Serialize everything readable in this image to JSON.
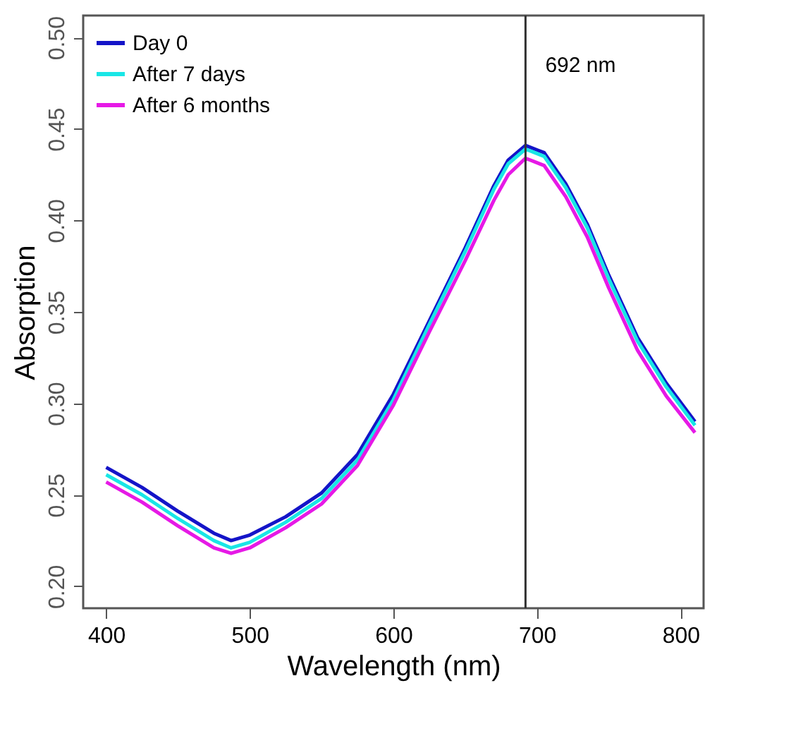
{
  "chart_data": {
    "type": "line",
    "xlabel": "Wavelength (nm)",
    "ylabel": "Absorption",
    "x": [
      400,
      425,
      450,
      475,
      487,
      500,
      525,
      550,
      575,
      600,
      625,
      650,
      670,
      680,
      692,
      705,
      720,
      735,
      750,
      770,
      790,
      810
    ],
    "series": [
      {
        "name": "Day 0",
        "color": "#1414c8",
        "values": [
          0.265,
          0.254,
          0.241,
          0.229,
          0.225,
          0.228,
          0.238,
          0.251,
          0.272,
          0.305,
          0.345,
          0.385,
          0.419,
          0.433,
          0.441,
          0.437,
          0.42,
          0.398,
          0.37,
          0.336,
          0.311,
          0.29
        ]
      },
      {
        "name": "After 7 days",
        "color": "#19e6e6",
        "values": [
          0.261,
          0.25,
          0.237,
          0.225,
          0.221,
          0.224,
          0.235,
          0.248,
          0.269,
          0.302,
          0.343,
          0.383,
          0.417,
          0.431,
          0.439,
          0.435,
          0.418,
          0.396,
          0.368,
          0.334,
          0.309,
          0.288
        ]
      },
      {
        "name": "After 6 months",
        "color": "#e619e6",
        "values": [
          0.257,
          0.246,
          0.233,
          0.221,
          0.218,
          0.221,
          0.232,
          0.245,
          0.266,
          0.299,
          0.339,
          0.378,
          0.411,
          0.425,
          0.434,
          0.43,
          0.413,
          0.391,
          0.363,
          0.329,
          0.304,
          0.284
        ]
      }
    ],
    "xlim": [
      384,
      816
    ],
    "xticks": [
      400,
      500,
      600,
      700,
      800
    ],
    "ylim": [
      0.188,
      0.512
    ],
    "yticks": [
      {
        "value": 0.2,
        "label": "0.20"
      },
      0.25,
      {
        "value": 0.3,
        "label": "0.30"
      },
      0.35,
      {
        "value": 0.4,
        "label": "0.40"
      },
      0.45,
      {
        "value": 0.5,
        "label": "0.50"
      }
    ],
    "ref_lines": [
      {
        "axis": "x",
        "value": 692,
        "label": "692 nm",
        "color": "#333333"
      }
    ],
    "legend": "top left",
    "grid": false,
    "line_style": "solid"
  }
}
